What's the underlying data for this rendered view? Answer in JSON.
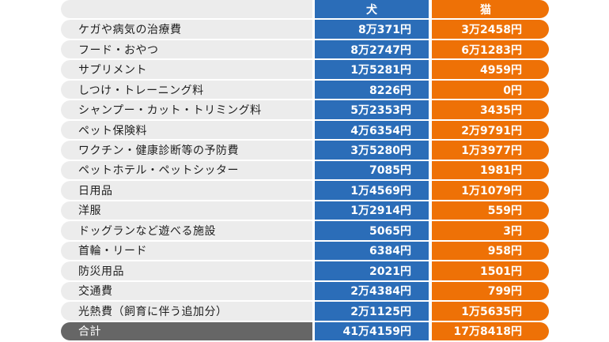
{
  "header": {
    "label": "",
    "dog": "犬",
    "cat": "猫"
  },
  "rows": [
    {
      "label": "ケガや病気の治療費",
      "dog": "8万371円",
      "cat": "3万2458円"
    },
    {
      "label": "フード・おやつ",
      "dog": "8万2747円",
      "cat": "6万1283円"
    },
    {
      "label": "サプリメント",
      "dog": "1万5281円",
      "cat": "4959円"
    },
    {
      "label": "しつけ・トレーニング料",
      "dog": "8226円",
      "cat": "0円"
    },
    {
      "label": "シャンプー・カット・トリミング料",
      "dog": "5万2353円",
      "cat": "3435円"
    },
    {
      "label": "ペット保険料",
      "dog": "4万6354円",
      "cat": "2万9791円"
    },
    {
      "label": "ワクチン・健康診断等の予防費",
      "dog": "3万5280円",
      "cat": "1万3977円"
    },
    {
      "label": "ペットホテル・ペットシッター",
      "dog": "7085円",
      "cat": "1981円"
    },
    {
      "label": "日用品",
      "dog": "1万4569円",
      "cat": "1万1079円"
    },
    {
      "label": "洋服",
      "dog": "1万2914円",
      "cat": "559円"
    },
    {
      "label": "ドッグランなど遊べる施設",
      "dog": "5065円",
      "cat": "3円"
    },
    {
      "label": "首輪・リード",
      "dog": "6384円",
      "cat": "958円"
    },
    {
      "label": "防災用品",
      "dog": "2021円",
      "cat": "1501円"
    },
    {
      "label": "交通費",
      "dog": "2万4384円",
      "cat": "799円"
    },
    {
      "label": "光熱費（飼育に伴う追加分）",
      "dog": "2万1125円",
      "cat": "1万5635円"
    }
  ],
  "total": {
    "label": "合計",
    "dog": "41万4159円",
    "cat": "17万8418円"
  },
  "colors": {
    "dog": "#2b6db8",
    "cat": "#ee7106",
    "label_bg": "#ececec",
    "total_bg": "#666666"
  }
}
